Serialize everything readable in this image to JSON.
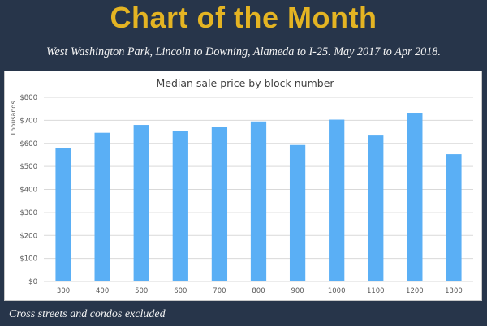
{
  "header": {
    "headline": "Chart of the Month",
    "subtitle": "West Washington Park, Lincoln to Downing, Alameda to I-25. May 2017 to Apr 2018.",
    "footnote": "Cross streets and condos excluded"
  },
  "colors": {
    "background": "#27354a",
    "headline": "#e4b423",
    "bar": "#5aaff5",
    "gridline": "#d9d9d9"
  },
  "chart_data": {
    "type": "bar",
    "title": "Median sale price by block number",
    "xlabel": "",
    "ylabel": "Thousands",
    "categories": [
      "300",
      "400",
      "500",
      "600",
      "700",
      "800",
      "900",
      "1000",
      "1100",
      "1200",
      "1300"
    ],
    "values": [
      581,
      646,
      680,
      653,
      670,
      695,
      593,
      703,
      634,
      733,
      553
    ],
    "ylim": [
      0,
      800
    ],
    "yticks": [
      0,
      100,
      200,
      300,
      400,
      500,
      600,
      700,
      800
    ],
    "ytick_labels": [
      "$0",
      "$100",
      "$200",
      "$300",
      "$400",
      "$500",
      "$600",
      "$700",
      "$800"
    ],
    "grid": true,
    "legend": "none"
  }
}
